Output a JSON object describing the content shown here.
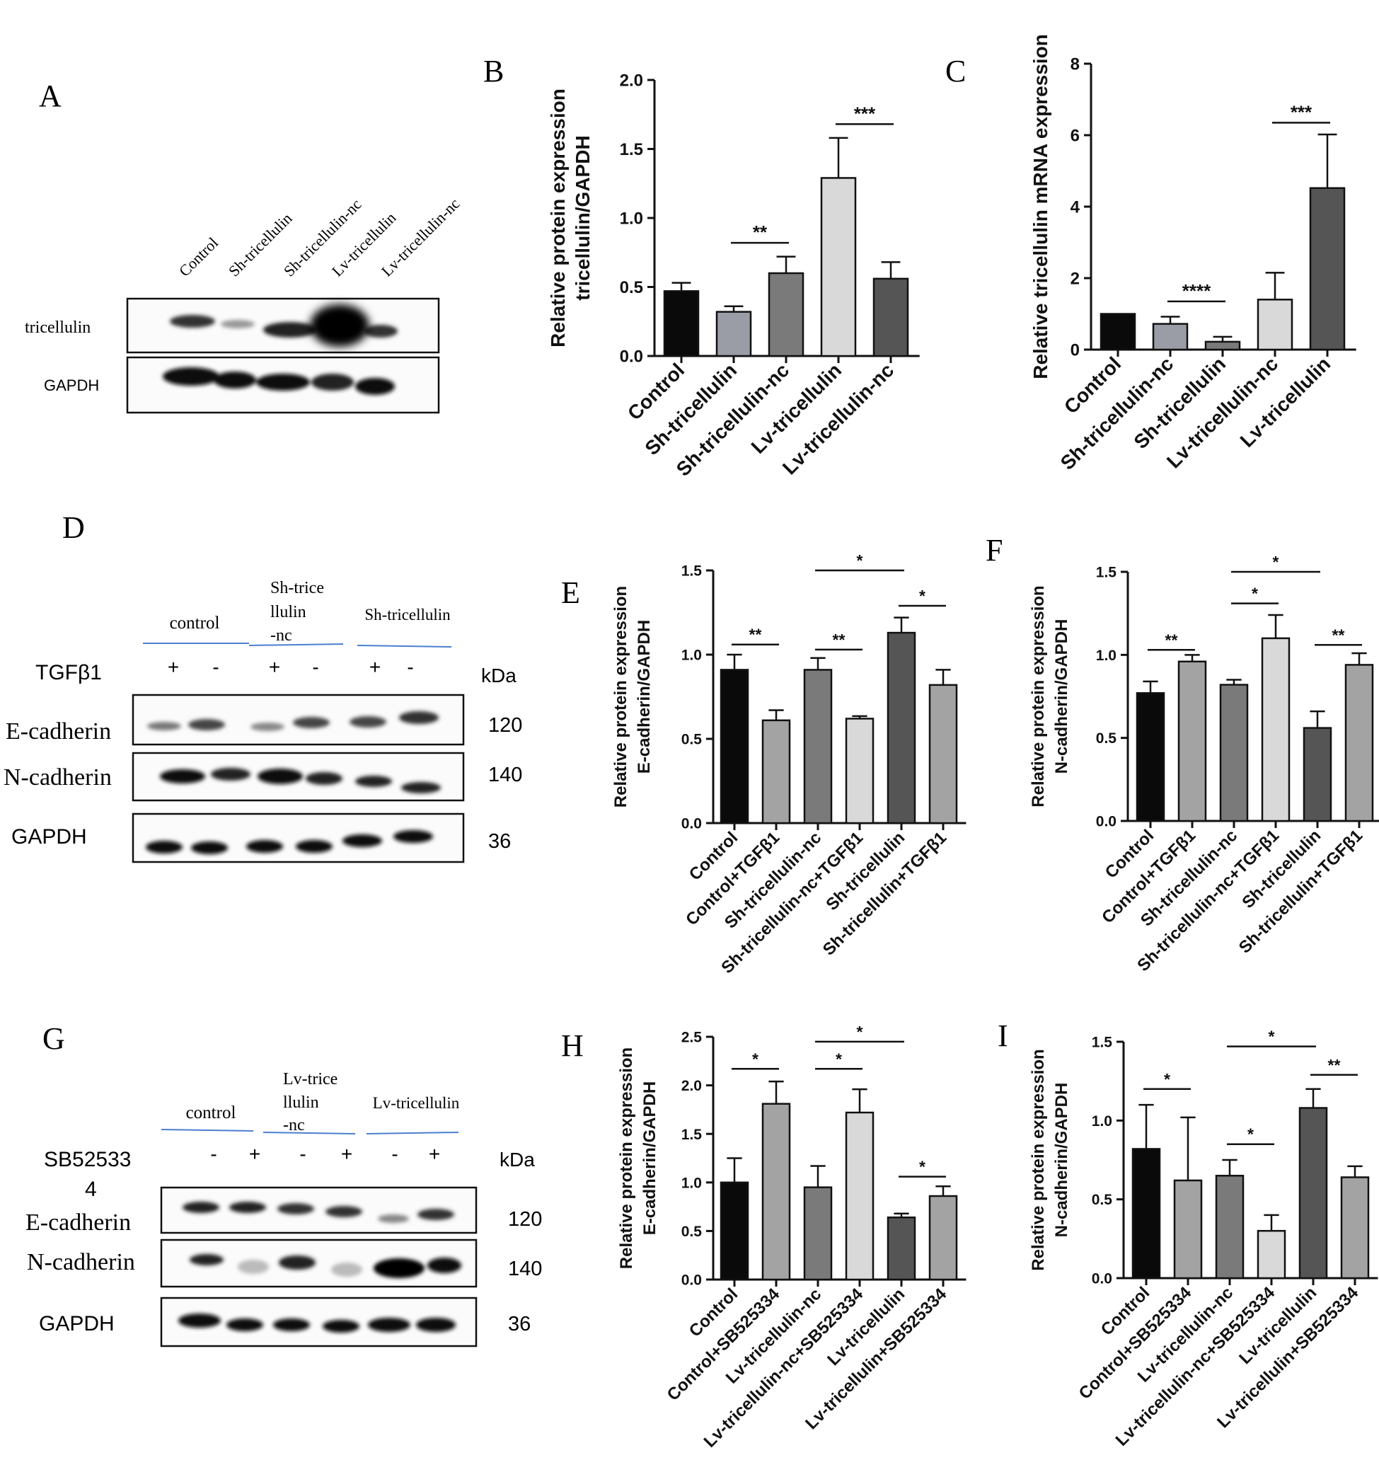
{
  "colors": {
    "black": "#0a0a0a",
    "dark_gray": "#555555",
    "mid_gray": "#7a7a7a",
    "light_gray": "#a3a3a3",
    "very_light_gray": "#d9d9d9",
    "bluish_gray": "#9a9ca6",
    "divider_blue": "#4a7fd0"
  },
  "panel_letters": [
    "A",
    "B",
    "C",
    "D",
    "E",
    "F",
    "G",
    "H",
    "I"
  ],
  "blots": [
    {
      "id": "A",
      "letter": "A",
      "lane_labels": [
        "Control",
        "Sh-tricellulin",
        "Sh-tricellulin-nc",
        "Lv-tricellulin",
        "Lv-tricellulin-nc"
      ],
      "rows": [
        {
          "label": "tricellulin",
          "kda": ""
        },
        {
          "label": "GAPDH",
          "kda": ""
        }
      ]
    },
    {
      "id": "D",
      "letter": "D",
      "group_labels": [
        "control",
        "Sh-trice llulin -nc",
        "Sh-tricellulin"
      ],
      "treatment_label": "TGFβ1",
      "signs": [
        "+",
        "-",
        "+",
        "-",
        "+",
        "-"
      ],
      "kda_header": "kDa",
      "rows": [
        {
          "label": "E-cadherin",
          "kda": "120"
        },
        {
          "label": "N-cadherin",
          "kda": "140"
        },
        {
          "label": "GAPDH",
          "kda": "36"
        }
      ]
    },
    {
      "id": "G",
      "letter": "G",
      "group_labels": [
        "control",
        "Lv-trice llulin -nc",
        "Lv-tricellulin"
      ],
      "treatment_label": "SB52533 4",
      "signs": [
        "-",
        "+",
        "-",
        "+",
        "-",
        "+"
      ],
      "kda_header": "kDa",
      "rows": [
        {
          "label": "E-cadherin",
          "kda": "120"
        },
        {
          "label": "N-cadherin",
          "kda": "140"
        },
        {
          "label": "GAPDH",
          "kda": "36"
        }
      ]
    }
  ],
  "chart_data": [
    {
      "panel": "B",
      "type": "bar",
      "ylabel": "Relative protein expression tricellulin/GAPDH",
      "ylim": [
        0,
        2.0
      ],
      "yticks": [
        "0.0",
        "0.5",
        "1.0",
        "1.5",
        "2.0"
      ],
      "categories": [
        "Control",
        "Sh-tricellulin",
        "Sh-tricellulin-nc",
        "Lv-tricellulin",
        "Lv-tricellulin-nc"
      ],
      "values": [
        0.47,
        0.32,
        0.6,
        1.29,
        0.56
      ],
      "errors": [
        0.06,
        0.04,
        0.12,
        0.29,
        0.12
      ],
      "bar_colors": [
        "#0a0a0a",
        "#9a9ca6",
        "#7a7a7a",
        "#d9d9d9",
        "#555555"
      ],
      "significance": [
        {
          "label": "**",
          "from": 1,
          "to": 2,
          "y": 0.82
        },
        {
          "label": "***",
          "from": 3,
          "to": 4,
          "y": 1.68
        }
      ]
    },
    {
      "panel": "C",
      "type": "bar",
      "ylabel": "Relative tricellulin mRNA expression",
      "ylim": [
        0,
        8
      ],
      "yticks": [
        "0",
        "2",
        "4",
        "6",
        "8"
      ],
      "categories": [
        "Control",
        "Sh-tricellulin-nc",
        "Sh-tricellulin",
        "Lv-tricellulin-nc",
        "Lv-tricellulin"
      ],
      "values": [
        1.0,
        0.72,
        0.22,
        1.4,
        4.52
      ],
      "errors": [
        0.0,
        0.2,
        0.14,
        0.75,
        1.5
      ],
      "bar_colors": [
        "#0a0a0a",
        "#9a9ca6",
        "#7a7a7a",
        "#d9d9d9",
        "#555555"
      ],
      "significance": [
        {
          "label": "****",
          "from": 1,
          "to": 2,
          "y": 1.35
        },
        {
          "label": "***",
          "from": 3,
          "to": 4,
          "y": 6.35
        }
      ]
    },
    {
      "panel": "E",
      "type": "bar",
      "ylabel": "Relative protein expression E-cadherin/GAPDH",
      "ylim": [
        0,
        1.5
      ],
      "yticks": [
        "0.0",
        "0.5",
        "1.0",
        "1.5"
      ],
      "categories": [
        "Control",
        "Control+TGFβ1",
        "Sh-tricellulin-nc",
        "Sh-tricellulin-nc+TGFβ1",
        "Sh-tricellulin",
        "Sh-tricellulin+TGFβ1"
      ],
      "values": [
        0.91,
        0.61,
        0.91,
        0.62,
        1.13,
        0.82
      ],
      "errors": [
        0.09,
        0.06,
        0.07,
        0.015,
        0.09,
        0.09
      ],
      "bar_colors": [
        "#0a0a0a",
        "#a3a3a3",
        "#7a7a7a",
        "#d9d9d9",
        "#555555",
        "#a3a3a3"
      ],
      "significance": [
        {
          "label": "**",
          "from": 0,
          "to": 1,
          "y": 1.06
        },
        {
          "label": "**",
          "from": 2,
          "to": 3,
          "y": 1.03
        },
        {
          "label": "*",
          "from": 2,
          "to": 4,
          "y": 1.5
        },
        {
          "label": "*",
          "from": 4,
          "to": 5,
          "y": 1.29
        }
      ]
    },
    {
      "panel": "F",
      "type": "bar",
      "ylabel": "Relative protein expression N-cadherin/GAPDH",
      "ylim": [
        0,
        1.5
      ],
      "yticks": [
        "0.0",
        "0.5",
        "1.0",
        "1.5"
      ],
      "categories": [
        "Control",
        "Control+TGFβ1",
        "Sh-tricellulin-nc",
        "Sh-tricellulin-nc+TGFβ1",
        "Sh-tricellulin",
        "Sh-tricellulin+TGFβ1"
      ],
      "values": [
        0.77,
        0.96,
        0.82,
        1.1,
        0.56,
        0.94
      ],
      "errors": [
        0.07,
        0.04,
        0.03,
        0.14,
        0.1,
        0.07
      ],
      "bar_colors": [
        "#0a0a0a",
        "#a3a3a3",
        "#7a7a7a",
        "#d9d9d9",
        "#555555",
        "#a3a3a3"
      ],
      "significance": [
        {
          "label": "**",
          "from": 0,
          "to": 1,
          "y": 1.03
        },
        {
          "label": "*",
          "from": 2,
          "to": 3,
          "y": 1.31
        },
        {
          "label": "*",
          "from": 2,
          "to": 4,
          "y": 1.5
        },
        {
          "label": "**",
          "from": 4,
          "to": 5,
          "y": 1.06
        }
      ]
    },
    {
      "panel": "H",
      "type": "bar",
      "ylabel": "Relative protein expression E-cadherin/GAPDH",
      "ylim": [
        0,
        2.5
      ],
      "yticks": [
        "0.0",
        "0.5",
        "1.0",
        "1.5",
        "2.0",
        "2.5"
      ],
      "categories": [
        "Control",
        "Control+SB525334",
        "Lv-tricellulin-nc",
        "Lv-tricellulin-nc+SB525334",
        "Lv-tricellulin",
        "Lv-tricellulin+SB525334"
      ],
      "values": [
        1.0,
        1.81,
        0.95,
        1.72,
        0.64,
        0.86
      ],
      "errors": [
        0.25,
        0.23,
        0.22,
        0.24,
        0.04,
        0.1
      ],
      "bar_colors": [
        "#0a0a0a",
        "#a3a3a3",
        "#7a7a7a",
        "#d9d9d9",
        "#555555",
        "#a3a3a3"
      ],
      "significance": [
        {
          "label": "*",
          "from": 0,
          "to": 1,
          "y": 2.17
        },
        {
          "label": "*",
          "from": 2,
          "to": 3,
          "y": 2.17
        },
        {
          "label": "*",
          "from": 2,
          "to": 4,
          "y": 2.45
        },
        {
          "label": "*",
          "from": 4,
          "to": 5,
          "y": 1.06
        }
      ]
    },
    {
      "panel": "I",
      "type": "bar",
      "ylabel": "Relative protein expression N-cadherin/GAPDH",
      "ylim": [
        0,
        1.5
      ],
      "yticks": [
        "0.0",
        "0.5",
        "1.0",
        "1.5"
      ],
      "categories": [
        "Control",
        "Control+SB525334",
        "Lv-tricellulin-nc",
        "Lv-tricellulin-nc+SB525334",
        "Lv-tricellulin",
        "Lv-tricellulin+SB525334"
      ],
      "values": [
        0.82,
        0.62,
        0.65,
        0.3,
        1.08,
        0.64
      ],
      "errors": [
        0.28,
        0.4,
        0.1,
        0.1,
        0.12,
        0.07
      ],
      "bar_colors": [
        "#0a0a0a",
        "#a3a3a3",
        "#7a7a7a",
        "#d9d9d9",
        "#555555",
        "#a3a3a3"
      ],
      "significance": [
        {
          "label": "*",
          "from": 0,
          "to": 1,
          "y": 1.2
        },
        {
          "label": "*",
          "from": 2,
          "to": 3,
          "y": 0.85
        },
        {
          "label": "*",
          "from": 2,
          "to": 4,
          "y": 1.47
        },
        {
          "label": "**",
          "from": 4,
          "to": 5,
          "y": 1.29
        }
      ]
    }
  ]
}
